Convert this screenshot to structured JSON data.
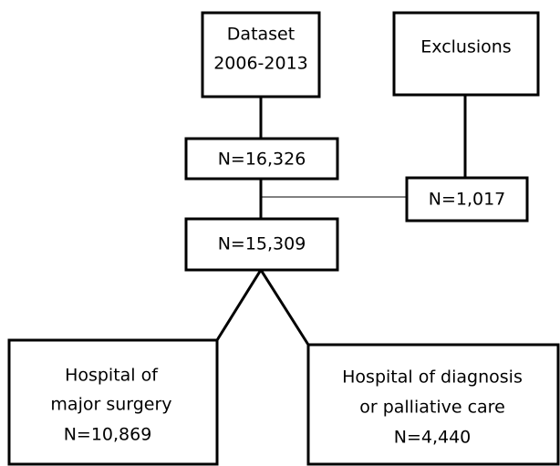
{
  "nodes": [
    {
      "lines": [
        "Dataset",
        "2006-2013"
      ]
    },
    {
      "lines": [
        "Exclusions"
      ]
    },
    {
      "lines": [
        "N=16,326"
      ]
    },
    {
      "lines": [
        "N=1,017"
      ]
    },
    {
      "lines": [
        "N=15,309"
      ]
    },
    {
      "lines": [
        "Hospital of",
        "major surgery",
        "N=10,869"
      ]
    },
    {
      "lines": [
        "Hospital of diagnosis",
        "or palliative care",
        "N=4,440"
      ]
    }
  ]
}
